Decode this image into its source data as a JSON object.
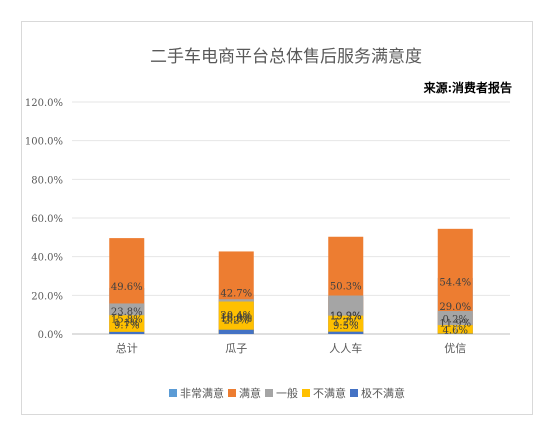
{
  "chart_data": {
    "type": "bar",
    "stacked": true,
    "title": "二手车电商平台总体售后服务满意度",
    "source_note": "来源:消费者报告",
    "categories": [
      "总计",
      "瓜子",
      "人人车",
      "优信"
    ],
    "ylim": [
      0,
      120
    ],
    "yticks": [
      "0.0%",
      "20.0%",
      "40.0%",
      "60.0%",
      "80.0%",
      "100.0%",
      "120.0%"
    ],
    "ytick_values": [
      0,
      20,
      40,
      60,
      80,
      100,
      120
    ],
    "grid": true,
    "legend_position": "bottom",
    "series": [
      {
        "name": "非常满意",
        "color": "#5b9bd5",
        "values": [
          23.8,
          20.4,
          19.2,
          29.0
        ],
        "labels": [
          "23.8%",
          "20.4%",
          "19.2%",
          "29.0%"
        ]
      },
      {
        "name": "满意",
        "color": "#ed7d31",
        "values": [
          49.6,
          42.7,
          50.3,
          54.4
        ],
        "labels": [
          "49.6%",
          "42.7%",
          "50.3%",
          "54.4%"
        ]
      },
      {
        "name": "一般",
        "color": "#a5a5a5",
        "values": [
          15.8,
          18.0,
          19.9,
          11.9
        ],
        "labels": [
          "15.8%",
          "18.0%",
          "19.9%",
          "11.9%"
        ]
      },
      {
        "name": "不满意",
        "color": "#ffc000",
        "values": [
          9.7,
          16.8,
          9.5,
          4.6
        ],
        "labels": [
          "9.7%",
          "16.8%",
          "9.5%",
          "4.6%"
        ]
      },
      {
        "name": "极不满意",
        "color": "#4472c4",
        "values": [
          1.1,
          2.2,
          1.2,
          0.2
        ],
        "labels": [
          "1.1%",
          "2.2%",
          "1.2%",
          "0.2%"
        ]
      }
    ]
  }
}
